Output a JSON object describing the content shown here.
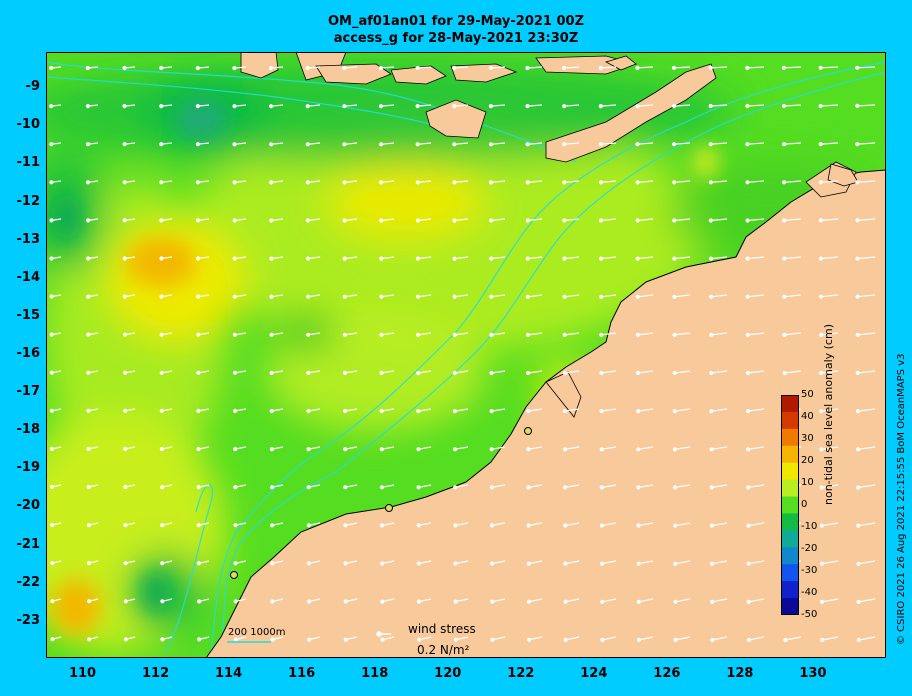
{
  "title": {
    "line1": "OM_af01an01 for 29-May-2021 00Z",
    "line2": "access_g for 28-May-2021 23:30Z"
  },
  "map": {
    "lon_range": [
      109,
      132
    ],
    "lat_range": [
      -23.95,
      -8.05
    ],
    "lon_ticks": [
      110,
      112,
      114,
      116,
      118,
      120,
      122,
      124,
      126,
      128,
      130
    ],
    "lat_ticks": [
      -9,
      -10,
      -11,
      -12,
      -13,
      -14,
      -15,
      -16,
      -17,
      -18,
      -19,
      -20,
      -21,
      -22,
      -23
    ],
    "ocean_color": "#55dd22",
    "land_color": "#f8c99a",
    "coast_color": "#000000",
    "contour_color": "#22dddd"
  },
  "colorbar": {
    "label": "non-tidal sea level anomaly (cm)",
    "ticks": [
      50,
      40,
      30,
      20,
      10,
      0,
      -10,
      -20,
      -30,
      -40,
      -50
    ],
    "colors": [
      "#b01800",
      "#d43a00",
      "#ee7a00",
      "#f6b400",
      "#f0e600",
      "#b8ee22",
      "#55dd22",
      "#11bb44",
      "#10aa99",
      "#1188cc",
      "#1155ee",
      "#1122cc",
      "#0a0a99"
    ]
  },
  "wind": {
    "label": "wind stress",
    "value": "0.2 N/m²"
  },
  "scale": {
    "label": "200  1000m"
  },
  "credit": "© CSIRO 2021  26 Aug 2021 22:15:55 BoM OceanMAPS v3"
}
